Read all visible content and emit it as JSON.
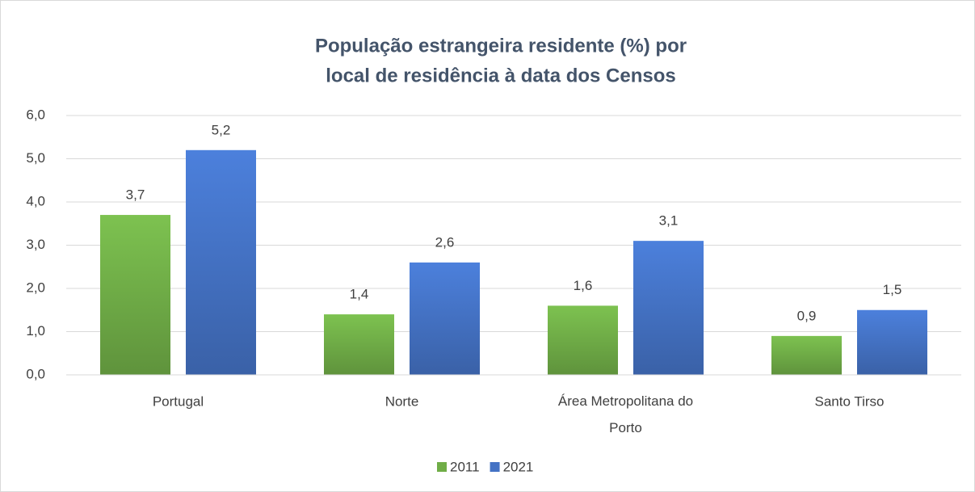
{
  "chart_data": {
    "type": "bar",
    "title": [
      "População estrangeira residente (%) por",
      "local de residência à data dos Censos"
    ],
    "categories": [
      "Portugal",
      "Norte",
      "Área Metropolitana do Porto",
      "Santo Tirso"
    ],
    "series": [
      {
        "name": "2011",
        "color": "#70ad47",
        "values": [
          3.7,
          1.4,
          1.6,
          0.9
        ],
        "value_labels": [
          "3,7",
          "1,4",
          "1,6",
          "0,9"
        ]
      },
      {
        "name": "2021",
        "color": "#4472c4",
        "values": [
          5.2,
          2.6,
          3.1,
          1.5
        ],
        "value_labels": [
          "5,2",
          "2,6",
          "3,1",
          "1,5"
        ]
      }
    ],
    "ylim": [
      0,
      6
    ],
    "yticks": [
      {
        "value": 0,
        "label": "0,0"
      },
      {
        "value": 1,
        "label": "1,0"
      },
      {
        "value": 2,
        "label": "2,0"
      },
      {
        "value": 3,
        "label": "3,0"
      },
      {
        "value": 4,
        "label": "4,0"
      },
      {
        "value": 5,
        "label": "5,0"
      },
      {
        "value": 6,
        "label": "6,0"
      }
    ],
    "grid": true,
    "legend": "bottom"
  }
}
